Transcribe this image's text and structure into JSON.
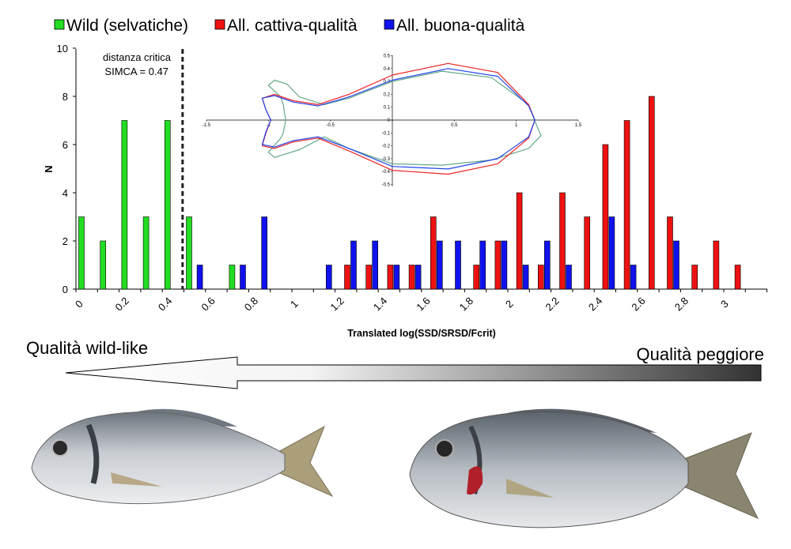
{
  "legend": {
    "items": [
      {
        "label": "Wild (selvatiche)",
        "color": "#22dd22"
      },
      {
        "label": "All. cattiva-qualità",
        "color": "#ee1111"
      },
      {
        "label": "All. buona-qualità",
        "color": "#1111ee"
      }
    ]
  },
  "annotation": {
    "line1": "distanza critica",
    "line2": "SIMCA = 0.47"
  },
  "quality_scale": {
    "left_label": "Qualità wild-like",
    "right_label": "Qualità peggiore"
  },
  "photos": [
    {
      "name": "fish-photo-wild-like"
    },
    {
      "name": "fish-photo-worse-quality"
    }
  ],
  "chart_data": [
    {
      "type": "bar",
      "title": "",
      "xlabel": "Translated log(SSD/SRSD/Fcrit)",
      "ylabel": "N",
      "xlim": [
        -0.05,
        3.2
      ],
      "ylim": [
        0,
        10
      ],
      "xticks": [
        "0",
        "0.2",
        "0.4",
        "0.6",
        "0.8",
        "1",
        "1.2",
        "1.4",
        "1.6",
        "1.8",
        "2",
        "2.2",
        "2.4",
        "2.6",
        "2.8",
        "3"
      ],
      "yticks": [
        "0",
        "2",
        "4",
        "6",
        "8",
        "10"
      ],
      "grid": false,
      "legend_position": "top",
      "critical_line": {
        "x": 0.47,
        "style": "dashed"
      },
      "series": [
        {
          "name": "Wild (selvatiche)",
          "color": "#22dd22",
          "points": [
            [
              0,
              3
            ],
            [
              0.1,
              2
            ],
            [
              0.2,
              7
            ],
            [
              0.3,
              3
            ],
            [
              0.4,
              7
            ],
            [
              0.5,
              3
            ],
            [
              0.7,
              1
            ]
          ]
        },
        {
          "name": "All. cattiva-qualità",
          "color": "#ee1111",
          "points": [
            [
              1.25,
              1
            ],
            [
              1.35,
              1
            ],
            [
              1.45,
              1
            ],
            [
              1.55,
              1
            ],
            [
              1.65,
              3
            ],
            [
              1.85,
              1
            ],
            [
              1.95,
              2
            ],
            [
              2.05,
              4
            ],
            [
              2.15,
              1
            ],
            [
              2.25,
              4
            ],
            [
              2.35,
              3
            ],
            [
              2.45,
              6
            ],
            [
              2.55,
              7
            ],
            [
              2.65,
              8
            ],
            [
              2.75,
              3
            ],
            [
              2.85,
              1
            ],
            [
              2.95,
              2
            ],
            [
              3.05,
              1
            ]
          ]
        },
        {
          "name": "All. buona-qualità",
          "color": "#1111ee",
          "points": [
            [
              0.55,
              1
            ],
            [
              0.75,
              1
            ],
            [
              0.85,
              3
            ],
            [
              1.15,
              1
            ],
            [
              1.25,
              2
            ],
            [
              1.35,
              2
            ],
            [
              1.45,
              1
            ],
            [
              1.55,
              1
            ],
            [
              1.65,
              2
            ],
            [
              1.75,
              2
            ],
            [
              1.85,
              2
            ],
            [
              1.95,
              2
            ],
            [
              2.05,
              1
            ],
            [
              2.15,
              2
            ],
            [
              2.25,
              1
            ],
            [
              2.45,
              3
            ],
            [
              2.55,
              1
            ],
            [
              2.75,
              2
            ]
          ]
        }
      ]
    },
    {
      "type": "line",
      "title": "",
      "xlim": [
        -1.5,
        1.5
      ],
      "ylim": [
        -0.5,
        0.5
      ],
      "xticks": [
        "-1.5",
        "-1",
        "-0.5",
        "0",
        "0.5",
        "1",
        "1.5"
      ],
      "yticks": [
        "0.5",
        "0.4",
        "0.3",
        "0.2",
        "0.1",
        "0",
        "-0.1",
        "-0.2",
        "-0.3",
        "-0.4",
        "-0.5"
      ],
      "series": [
        {
          "color": "#66aa88",
          "points": [
            [
              -1.0,
              0.27
            ],
            [
              -0.95,
              0.31
            ],
            [
              -0.85,
              0.28
            ],
            [
              -0.75,
              0.18
            ],
            [
              -0.55,
              0.12
            ],
            [
              -0.35,
              0.17
            ],
            [
              0,
              0.3
            ],
            [
              0.4,
              0.38
            ],
            [
              0.8,
              0.33
            ],
            [
              1.1,
              0.12
            ],
            [
              1.15,
              -0.01
            ],
            [
              1.2,
              -0.12
            ],
            [
              1.1,
              -0.22
            ],
            [
              0.8,
              -0.31
            ],
            [
              0.4,
              -0.35
            ],
            [
              0,
              -0.34
            ],
            [
              -0.35,
              -0.22
            ],
            [
              -0.55,
              -0.13
            ],
            [
              -0.75,
              -0.23
            ],
            [
              -0.95,
              -0.29
            ],
            [
              -1.0,
              -0.25
            ],
            [
              -0.9,
              -0.14
            ],
            [
              -0.88,
              -0.1
            ],
            [
              -0.86,
              0.0
            ],
            [
              -0.88,
              0.12
            ],
            [
              -0.9,
              0.18
            ],
            [
              -1.0,
              0.27
            ]
          ]
        },
        {
          "color": "#ee2222",
          "points": [
            [
              -1.05,
              0.17
            ],
            [
              -0.95,
              0.2
            ],
            [
              -0.8,
              0.15
            ],
            [
              -0.6,
              0.12
            ],
            [
              -0.35,
              0.2
            ],
            [
              0,
              0.35
            ],
            [
              0.45,
              0.44
            ],
            [
              0.85,
              0.37
            ],
            [
              1.1,
              0.12
            ],
            [
              1.15,
              0.0
            ],
            [
              1.1,
              -0.14
            ],
            [
              0.85,
              -0.34
            ],
            [
              0.45,
              -0.42
            ],
            [
              0,
              -0.39
            ],
            [
              -0.35,
              -0.24
            ],
            [
              -0.6,
              -0.14
            ],
            [
              -0.8,
              -0.17
            ],
            [
              -0.95,
              -0.22
            ],
            [
              -1.05,
              -0.2
            ],
            [
              -1.02,
              -0.1
            ],
            [
              -0.98,
              0.0
            ],
            [
              -1.02,
              0.08
            ],
            [
              -1.05,
              0.17
            ]
          ]
        },
        {
          "color": "#2244ee",
          "points": [
            [
              -1.05,
              0.17
            ],
            [
              -0.95,
              0.19
            ],
            [
              -0.8,
              0.14
            ],
            [
              -0.6,
              0.11
            ],
            [
              -0.35,
              0.18
            ],
            [
              0,
              0.31
            ],
            [
              0.45,
              0.4
            ],
            [
              0.85,
              0.34
            ],
            [
              1.1,
              0.11
            ],
            [
              1.15,
              0.0
            ],
            [
              1.1,
              -0.13
            ],
            [
              0.85,
              -0.3
            ],
            [
              0.45,
              -0.38
            ],
            [
              0,
              -0.36
            ],
            [
              -0.35,
              -0.22
            ],
            [
              -0.6,
              -0.13
            ],
            [
              -0.8,
              -0.16
            ],
            [
              -0.95,
              -0.21
            ],
            [
              -1.05,
              -0.19
            ],
            [
              -1.02,
              -0.09
            ],
            [
              -0.98,
              0.0
            ],
            [
              -1.02,
              0.08
            ],
            [
              -1.05,
              0.17
            ]
          ]
        }
      ]
    }
  ]
}
